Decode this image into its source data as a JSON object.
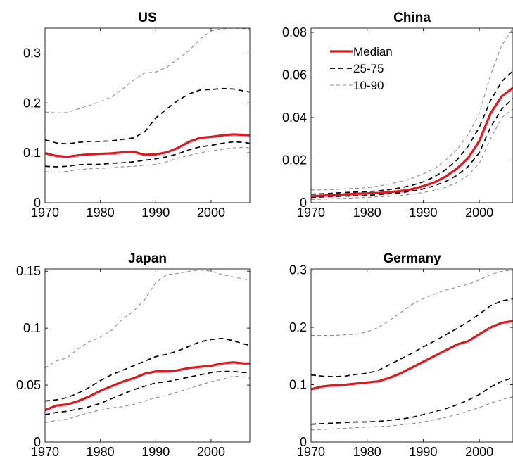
{
  "colors": {
    "median": "#e8141c",
    "iqr": "#000000",
    "p10_90": "#8c8c8c"
  },
  "chart_data": [
    {
      "type": "line",
      "title": "US",
      "xlim": [
        1970,
        2007
      ],
      "ylim": [
        0,
        0.35
      ],
      "xticks": [
        1970,
        1980,
        1990,
        2000
      ],
      "xtick_labels": [
        "1970",
        "1980",
        "1990",
        "2000"
      ],
      "yticks": [
        0,
        0.1,
        0.2,
        0.3
      ],
      "ytick_labels": [
        "0",
        "0.1",
        "0.2",
        "0.3"
      ],
      "x": [
        1970,
        1972,
        1974,
        1976,
        1978,
        1980,
        1982,
        1984,
        1986,
        1988,
        1990,
        1992,
        1994,
        1996,
        1998,
        2000,
        2002,
        2004,
        2006,
        2007
      ],
      "series": [
        {
          "name": "Median",
          "style": "median",
          "values": [
            0.099,
            0.094,
            0.092,
            0.095,
            0.097,
            0.098,
            0.099,
            0.101,
            0.102,
            0.096,
            0.097,
            0.101,
            0.11,
            0.122,
            0.13,
            0.132,
            0.135,
            0.137,
            0.136,
            0.135
          ]
        },
        {
          "name": "25-75",
          "style": "iqr",
          "values": [
            0.126,
            0.12,
            0.118,
            0.121,
            0.123,
            0.123,
            0.124,
            0.127,
            0.13,
            0.142,
            0.17,
            0.188,
            0.205,
            0.218,
            0.226,
            0.227,
            0.229,
            0.228,
            0.224,
            0.222
          ]
        },
        {
          "style": "iqr",
          "values": [
            0.073,
            0.072,
            0.073,
            0.076,
            0.077,
            0.077,
            0.079,
            0.08,
            0.082,
            0.085,
            0.088,
            0.092,
            0.098,
            0.106,
            0.112,
            0.115,
            0.119,
            0.122,
            0.121,
            0.119
          ]
        },
        {
          "name": "10-90",
          "style": "p10_90",
          "values": [
            0.182,
            0.18,
            0.181,
            0.188,
            0.195,
            0.203,
            0.212,
            0.228,
            0.246,
            0.26,
            0.262,
            0.272,
            0.288,
            0.305,
            0.328,
            0.344,
            0.349,
            0.35,
            0.349,
            0.348
          ]
        },
        {
          "style": "p10_90",
          "values": [
            0.062,
            0.061,
            0.063,
            0.066,
            0.068,
            0.069,
            0.07,
            0.072,
            0.073,
            0.075,
            0.077,
            0.082,
            0.089,
            0.095,
            0.1,
            0.104,
            0.107,
            0.11,
            0.111,
            0.11
          ]
        }
      ]
    },
    {
      "type": "line",
      "title": "China",
      "xlim": [
        1970,
        2006
      ],
      "ylim": [
        0,
        0.082
      ],
      "xticks": [
        1970,
        1980,
        1990,
        2000
      ],
      "xtick_labels": [
        "1970",
        "1980",
        "1990",
        "2000"
      ],
      "yticks": [
        0,
        0.02,
        0.04,
        0.06,
        0.08
      ],
      "ytick_labels": [
        "0",
        "0.02",
        "0.04",
        "0.06",
        "0.08"
      ],
      "legend": {
        "position": "top-left",
        "entries": [
          "Median",
          "25-75",
          "10-90"
        ]
      },
      "x": [
        1970,
        1972,
        1974,
        1976,
        1978,
        1980,
        1982,
        1984,
        1986,
        1988,
        1990,
        1992,
        1994,
        1996,
        1998,
        2000,
        2002,
        2004,
        2006
      ],
      "series": [
        {
          "name": "Median",
          "style": "median",
          "values": [
            0.003,
            0.0033,
            0.0036,
            0.0039,
            0.0042,
            0.0044,
            0.0046,
            0.005,
            0.0055,
            0.0064,
            0.0078,
            0.0096,
            0.0123,
            0.016,
            0.021,
            0.029,
            0.042,
            0.05,
            0.054
          ]
        },
        {
          "name": "25-75",
          "style": "iqr",
          "values": [
            0.004,
            0.0042,
            0.0045,
            0.0048,
            0.005,
            0.0052,
            0.0056,
            0.0062,
            0.007,
            0.0082,
            0.0098,
            0.0122,
            0.0155,
            0.02,
            0.0265,
            0.0355,
            0.048,
            0.057,
            0.062
          ]
        },
        {
          "style": "iqr",
          "values": [
            0.0025,
            0.0027,
            0.0029,
            0.0031,
            0.0033,
            0.0035,
            0.0038,
            0.0042,
            0.0047,
            0.0055,
            0.0065,
            0.008,
            0.01,
            0.0128,
            0.017,
            0.0235,
            0.0355,
            0.044,
            0.049
          ]
        },
        {
          "name": "10-90",
          "style": "p10_90",
          "values": [
            0.006,
            0.006,
            0.0062,
            0.0065,
            0.0068,
            0.007,
            0.0078,
            0.0088,
            0.01,
            0.0115,
            0.0135,
            0.016,
            0.02,
            0.025,
            0.032,
            0.042,
            0.06,
            0.074,
            0.082
          ]
        },
        {
          "style": "p10_90",
          "values": [
            0.0015,
            0.0017,
            0.0019,
            0.0021,
            0.0023,
            0.0025,
            0.0028,
            0.003,
            0.0034,
            0.004,
            0.0048,
            0.0058,
            0.0072,
            0.0095,
            0.013,
            0.0185,
            0.03,
            0.04,
            0.044
          ]
        }
      ]
    },
    {
      "type": "line",
      "title": "Japan",
      "xlim": [
        1970,
        2007
      ],
      "ylim": [
        0,
        0.152
      ],
      "xticks": [
        1970,
        1980,
        1990,
        2000
      ],
      "xtick_labels": [
        "1970",
        "1980",
        "1990",
        "2000"
      ],
      "yticks": [
        0,
        0.05,
        0.1,
        0.15
      ],
      "ytick_labels": [
        "0",
        "0.05",
        "0.1",
        "0.15"
      ],
      "x": [
        1970,
        1972,
        1974,
        1976,
        1978,
        1980,
        1982,
        1984,
        1986,
        1988,
        1990,
        1992,
        1994,
        1996,
        1998,
        2000,
        2002,
        2004,
        2006,
        2007
      ],
      "series": [
        {
          "name": "Median",
          "style": "median",
          "values": [
            0.028,
            0.032,
            0.033,
            0.036,
            0.04,
            0.045,
            0.049,
            0.053,
            0.056,
            0.06,
            0.062,
            0.062,
            0.063,
            0.065,
            0.066,
            0.067,
            0.069,
            0.07,
            0.069,
            0.069
          ]
        },
        {
          "name": "25-75",
          "style": "iqr",
          "values": [
            0.036,
            0.037,
            0.039,
            0.043,
            0.048,
            0.054,
            0.059,
            0.063,
            0.067,
            0.071,
            0.075,
            0.077,
            0.08,
            0.084,
            0.088,
            0.09,
            0.091,
            0.089,
            0.086,
            0.085
          ]
        },
        {
          "style": "iqr",
          "values": [
            0.024,
            0.026,
            0.027,
            0.029,
            0.031,
            0.034,
            0.038,
            0.042,
            0.046,
            0.049,
            0.052,
            0.053,
            0.055,
            0.057,
            0.059,
            0.061,
            0.062,
            0.062,
            0.061,
            0.061
          ]
        },
        {
          "name": "10-90",
          "style": "p10_90",
          "values": [
            0.065,
            0.071,
            0.074,
            0.082,
            0.088,
            0.092,
            0.098,
            0.108,
            0.115,
            0.125,
            0.14,
            0.147,
            0.148,
            0.15,
            0.151,
            0.15,
            0.147,
            0.145,
            0.143,
            0.142
          ]
        },
        {
          "style": "p10_90",
          "values": [
            0.017,
            0.019,
            0.02,
            0.023,
            0.026,
            0.028,
            0.03,
            0.031,
            0.033,
            0.036,
            0.039,
            0.041,
            0.044,
            0.047,
            0.05,
            0.053,
            0.055,
            0.058,
            0.057,
            0.056
          ]
        }
      ]
    },
    {
      "type": "line",
      "title": "Germany",
      "xlim": [
        1970,
        2006
      ],
      "ylim": [
        0,
        0.302
      ],
      "xticks": [
        1970,
        1980,
        1990,
        2000
      ],
      "xtick_labels": [
        "1970",
        "1980",
        "1990",
        "2000"
      ],
      "yticks": [
        0,
        0.1,
        0.2,
        0.3
      ],
      "ytick_labels": [
        "0",
        "0.1",
        "0.2",
        "0.3"
      ],
      "x": [
        1970,
        1972,
        1974,
        1976,
        1978,
        1980,
        1982,
        1984,
        1986,
        1988,
        1990,
        1992,
        1994,
        1996,
        1998,
        2000,
        2002,
        2004,
        2006
      ],
      "series": [
        {
          "name": "Median",
          "style": "median",
          "values": [
            0.092,
            0.097,
            0.099,
            0.1,
            0.102,
            0.104,
            0.106,
            0.112,
            0.12,
            0.13,
            0.14,
            0.15,
            0.16,
            0.17,
            0.176,
            0.188,
            0.2,
            0.208,
            0.211
          ]
        },
        {
          "name": "25-75",
          "style": "iqr",
          "values": [
            0.117,
            0.115,
            0.114,
            0.115,
            0.118,
            0.12,
            0.125,
            0.135,
            0.145,
            0.155,
            0.166,
            0.176,
            0.187,
            0.198,
            0.21,
            0.223,
            0.238,
            0.246,
            0.25
          ]
        },
        {
          "style": "iqr",
          "values": [
            0.031,
            0.032,
            0.033,
            0.034,
            0.035,
            0.035,
            0.036,
            0.038,
            0.04,
            0.043,
            0.048,
            0.053,
            0.058,
            0.065,
            0.073,
            0.083,
            0.096,
            0.106,
            0.112
          ]
        },
        {
          "name": "10-90",
          "style": "p10_90",
          "values": [
            0.186,
            0.186,
            0.186,
            0.187,
            0.188,
            0.192,
            0.2,
            0.212,
            0.226,
            0.24,
            0.25,
            0.258,
            0.265,
            0.27,
            0.275,
            0.283,
            0.292,
            0.298,
            0.3
          ]
        },
        {
          "style": "p10_90",
          "values": [
            0.021,
            0.022,
            0.023,
            0.024,
            0.025,
            0.026,
            0.027,
            0.028,
            0.03,
            0.032,
            0.035,
            0.039,
            0.043,
            0.048,
            0.054,
            0.06,
            0.068,
            0.074,
            0.079
          ]
        }
      ]
    }
  ]
}
